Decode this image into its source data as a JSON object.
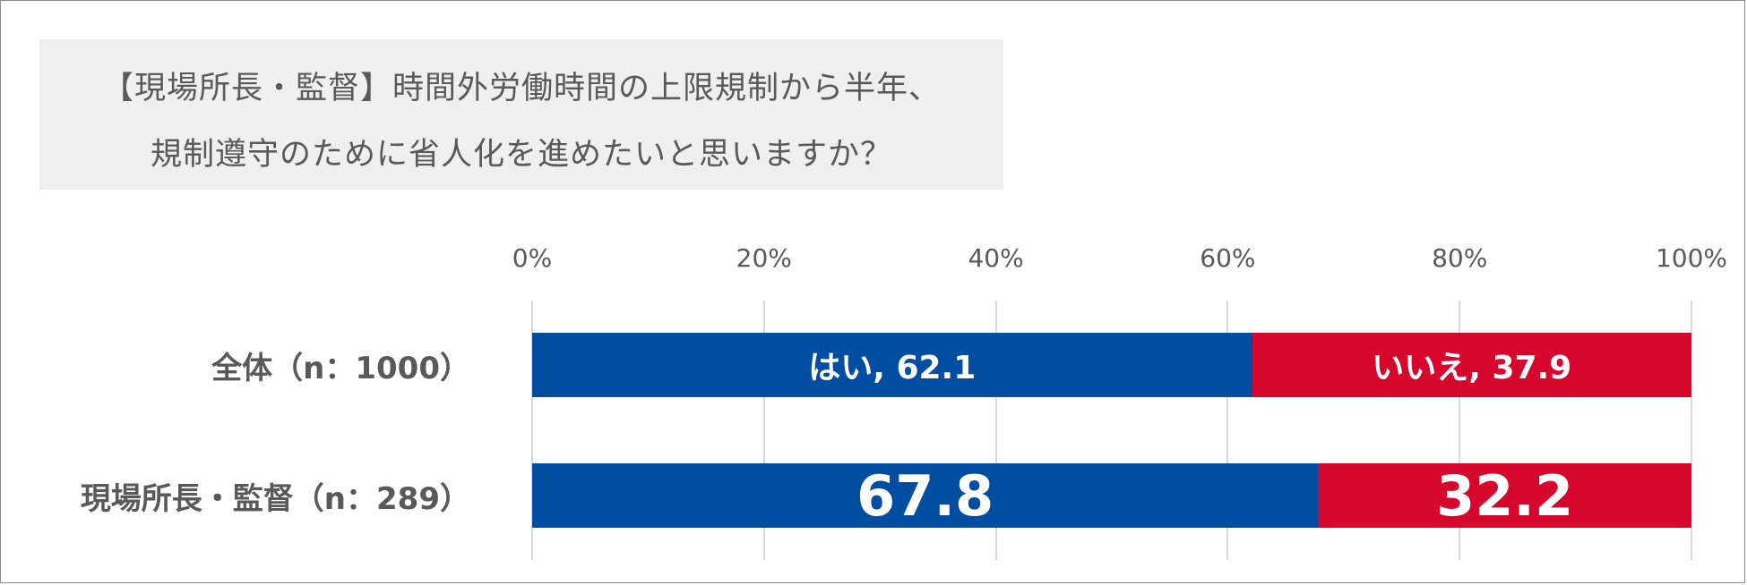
{
  "title": {
    "line1": "【現場所長・監督】時間外労働時間の上限規制から半年、",
    "line2": "規制遵守のために省人化を進めたいと思いますか？"
  },
  "chart_data": {
    "type": "bar",
    "orientation": "horizontal",
    "stacked": "percent",
    "x_ticks": [
      "0%",
      "20%",
      "40%",
      "60%",
      "80%",
      "100%"
    ],
    "xlim": [
      0,
      100
    ],
    "grid": true,
    "categories": [
      "全体（n：1000）",
      "現場所長・監督（n：289）"
    ],
    "series": [
      {
        "name": "はい",
        "color": "#004ea2",
        "values": [
          62.1,
          67.8
        ]
      },
      {
        "name": "いいえ",
        "color": "#d7062c",
        "values": [
          37.9,
          32.2
        ]
      }
    ],
    "data_labels": [
      [
        "はい, 62.1",
        "いいえ, 37.9"
      ],
      [
        "67.8",
        "32.2"
      ]
    ]
  }
}
